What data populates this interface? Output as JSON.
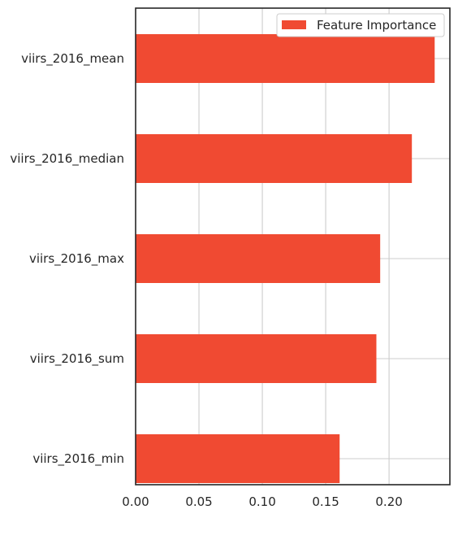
{
  "chart_data": {
    "type": "bar",
    "orientation": "horizontal",
    "categories": [
      "viirs_2016_mean",
      "viirs_2016_median",
      "viirs_2016_max",
      "viirs_2016_sum",
      "viirs_2016_min"
    ],
    "series": [
      {
        "name": "Feature Importance",
        "values": [
          0.236,
          0.218,
          0.193,
          0.19,
          0.161
        ],
        "color": "#f04a32"
      }
    ],
    "xticks": [
      "0.00",
      "0.05",
      "0.10",
      "0.15",
      "0.20"
    ],
    "xlim": [
      0,
      0.248
    ],
    "title": "",
    "xlabel": "",
    "ylabel": "",
    "grid": true,
    "legend_position": "top-right"
  }
}
